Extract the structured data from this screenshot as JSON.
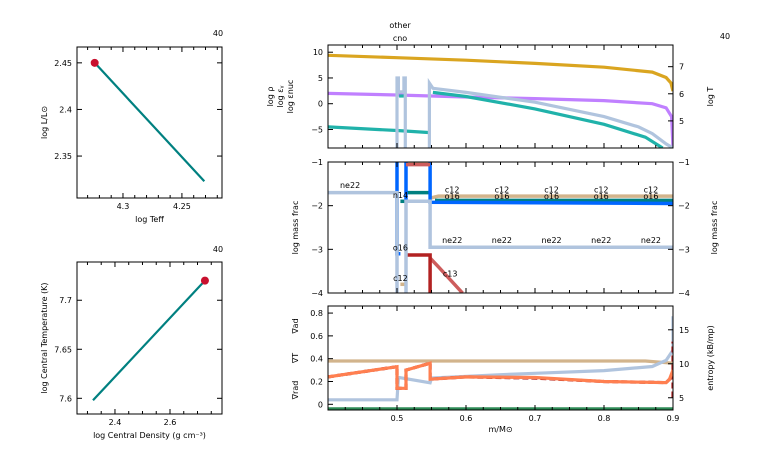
{
  "header": {
    "other_label": "other",
    "cno_label": "cno",
    "model_number_1": "40",
    "model_number_2": "40",
    "model_number_3": "40"
  },
  "chart_data": [
    {
      "id": "hr",
      "type": "line",
      "xlabel": "log Teff",
      "ylabel": "log L/L⊙",
      "xlim": [
        4.339,
        4.216
      ],
      "ylim": [
        2.305,
        2.467
      ],
      "xticks": [
        {
          "v": 4.3,
          "label": "4.3"
        },
        {
          "v": 4.25,
          "label": "4.25"
        }
      ],
      "yticks": [
        {
          "v": 2.45,
          "label": "2.45"
        },
        {
          "v": 2.4,
          "label": "2.4"
        },
        {
          "v": 2.35,
          "label": "2.35"
        }
      ],
      "series": [
        {
          "color": "#008080",
          "points": [
            [
              4.324,
              2.45
            ],
            [
              4.231,
              2.323
            ]
          ]
        }
      ],
      "marker": {
        "point": [
          4.324,
          2.45
        ],
        "color": "#C8102E"
      }
    },
    {
      "id": "center",
      "type": "line",
      "xlabel": "log Central Density (g cm⁻³)",
      "ylabel": "log Central Temperature (K)",
      "xlim": [
        2.262,
        2.789
      ],
      "ylim": [
        7.584,
        7.739
      ],
      "xticks": [
        {
          "v": 2.4,
          "label": "2.4"
        },
        {
          "v": 2.6,
          "label": "2.6"
        }
      ],
      "yticks": [
        {
          "v": 7.7,
          "label": "7.7"
        },
        {
          "v": 7.65,
          "label": "7.65"
        },
        {
          "v": 7.6,
          "label": "7.6"
        }
      ],
      "series": [
        {
          "color": "#008080",
          "points": [
            [
              2.32,
              7.598
            ],
            [
              2.727,
              7.72
            ]
          ]
        }
      ],
      "marker": {
        "point": [
          2.727,
          7.72
        ],
        "color": "#C8102E"
      }
    },
    {
      "id": "profile",
      "type": "line",
      "xlim": [
        0.4,
        0.9
      ],
      "ylim": [
        -8.6,
        11.4
      ],
      "y2lim": [
        4.0,
        7.8
      ],
      "yticks": [
        {
          "v": 10,
          "label": "10"
        },
        {
          "v": 5,
          "label": "5"
        },
        {
          "v": 0,
          "label": "0"
        },
        {
          "v": -5,
          "label": "-5"
        }
      ],
      "y2ticks": [
        {
          "v": 7,
          "label": "7"
        },
        {
          "v": 6,
          "label": "6"
        },
        {
          "v": 5,
          "label": "5"
        }
      ],
      "ylabels": [
        {
          "text": "log ρ",
          "color": "#C080FF"
        },
        {
          "text": "log εᵧ",
          "color": "#20B2AA"
        },
        {
          "text": "log εnuc",
          "color": "#B0C4DE"
        }
      ],
      "y2label": {
        "text": "log T",
        "color": "#DAA520"
      },
      "series": [
        {
          "name": "log T",
          "axis": "right",
          "color": "#DAA520",
          "segments": [
            [
              [
                0.4,
                7.42
              ],
              [
                0.5,
                7.33
              ],
              [
                0.6,
                7.24
              ],
              [
                0.7,
                7.12
              ],
              [
                0.8,
                6.98
              ],
              [
                0.87,
                6.8
              ],
              [
                0.89,
                6.6
              ],
              [
                0.897,
                6.4
              ],
              [
                0.9,
                6.1
              ]
            ]
          ]
        },
        {
          "name": "log rho",
          "color": "#C080FF",
          "segments": [
            [
              [
                0.4,
                2
              ],
              [
                0.5,
                1.7
              ],
              [
                0.6,
                1.3
              ],
              [
                0.7,
                1.0
              ],
              [
                0.8,
                0.6
              ],
              [
                0.87,
                0
              ],
              [
                0.89,
                -0.8
              ],
              [
                0.898,
                -2.5
              ],
              [
                0.9,
                -8.6
              ]
            ]
          ]
        },
        {
          "name": "log eps_grav",
          "color": "#20B2AA",
          "segments": [
            [
              [
                0.4,
                -4.5
              ],
              [
                0.5,
                -5.2
              ],
              [
                0.548,
                -5.6
              ]
            ],
            [
              [
                0.503,
                1.5
              ],
              [
                0.51,
                1.5
              ]
            ],
            [
              [
                0.552,
                2.2
              ],
              [
                0.6,
                1.4
              ],
              [
                0.7,
                -1
              ],
              [
                0.8,
                -4
              ],
              [
                0.86,
                -6.5
              ],
              [
                0.885,
                -8.6
              ]
            ]
          ]
        },
        {
          "name": "log eps_nuc",
          "color": "#B0C4DE",
          "segments": [
            [
              [
                0.5,
                -8.6
              ],
              [
                0.5,
                5
              ],
              [
                0.502,
                5
              ],
              [
                0.502,
                2.3
              ],
              [
                0.51,
                2.3
              ],
              [
                0.51,
                5
              ],
              [
                0.512,
                5
              ],
              [
                0.512,
                -8.6
              ]
            ],
            [
              [
                0.547,
                -8.6
              ],
              [
                0.547,
                4
              ],
              [
                0.552,
                3
              ],
              [
                0.6,
                2.2
              ],
              [
                0.7,
                0.3
              ],
              [
                0.8,
                -2.5
              ],
              [
                0.85,
                -4.5
              ],
              [
                0.87,
                -5.8
              ],
              [
                0.89,
                -7.8
              ],
              [
                0.9,
                -8.6
              ]
            ]
          ]
        }
      ]
    },
    {
      "id": "abundance",
      "type": "line",
      "xlim": [
        0.4,
        0.9
      ],
      "ylim": [
        -4,
        -1
      ],
      "yticks": [
        {
          "v": -1,
          "label": "-1"
        },
        {
          "v": -2,
          "label": "-2"
        },
        {
          "v": -3,
          "label": "-3"
        },
        {
          "v": -4,
          "label": "-4"
        }
      ],
      "ylabel": "log mass frac",
      "y2label": "log mass frac",
      "series": [
        {
          "name": "c12",
          "color": "#D2B48C",
          "segments": [
            [
              [
                0.505,
                -3.8
              ],
              [
                0.513,
                -3.8
              ]
            ],
            [
              [
                0.513,
                -1
              ],
              [
                0.548,
                -1
              ]
            ],
            [
              [
                0.55,
                -1.82
              ],
              [
                0.56,
                -1.78
              ],
              [
                0.9,
                -1.78
              ]
            ]
          ]
        },
        {
          "name": "n14",
          "color": "#008080",
          "segments": [
            [
              [
                0.505,
                -1.9
              ],
              [
                0.513,
                -1.9
              ]
            ],
            [
              [
                0.513,
                -1.7
              ],
              [
                0.548,
                -1.7
              ]
            ],
            [
              [
                0.555,
                -1.88
              ],
              [
                0.9,
                -1.88
              ]
            ]
          ]
        },
        {
          "name": "o16",
          "color": "#0066FF",
          "segments": [
            [
              [
                0.5,
                -1
              ],
              [
                0.5,
                -3.1
              ],
              [
                0.505,
                -3.1
              ]
            ],
            [
              [
                0.513,
                -1
              ],
              [
                0.513,
                -1.9
              ]
            ],
            [
              [
                0.548,
                -1
              ],
              [
                0.548,
                -1.92
              ],
              [
                0.9,
                -1.95
              ]
            ]
          ]
        },
        {
          "name": "c13",
          "color": "#CD5C5C",
          "segments": [
            [
              [
                0.513,
                -1.06
              ],
              [
                0.548,
                -1.06
              ]
            ],
            [
              [
                0.548,
                -3.2
              ],
              [
                0.56,
                -3.4
              ],
              [
                0.595,
                -4
              ]
            ]
          ]
        },
        {
          "name": "n15",
          "color": "#B22222",
          "segments": [
            [
              [
                0.513,
                -3.13
              ],
              [
                0.548,
                -3.13
              ],
              [
                0.548,
                -4
              ]
            ]
          ]
        },
        {
          "name": "ne22",
          "color": "#B0C4DE",
          "segments": [
            [
              [
                0.4,
                -1.7
              ],
              [
                0.5,
                -1.7
              ],
              [
                0.5,
                -4
              ]
            ],
            [
              [
                0.513,
                -4
              ],
              [
                0.513,
                -1.9
              ],
              [
                0.548,
                -1.9
              ],
              [
                0.548,
                -2.95
              ],
              [
                0.9,
                -2.95
              ]
            ]
          ]
        }
      ],
      "labels": [
        {
          "text": "ne22",
          "x": 0.432,
          "y": -1.6,
          "color": "#B0C4DE"
        },
        {
          "text": "n14",
          "x": 0.505,
          "y": -1.83,
          "color": "#008080"
        },
        {
          "text": "o16",
          "x": 0.505,
          "y": -3.03,
          "color": "#0066FF"
        },
        {
          "text": "c12",
          "x": 0.505,
          "y": -3.72,
          "color": "#D2B48C"
        },
        {
          "text": "c13",
          "x": 0.577,
          "y": -3.62,
          "color": "#CD5C5C"
        },
        {
          "text": "c12",
          "x": 0.58,
          "y": -1.7,
          "color": "#D2B48C"
        },
        {
          "text": "c12",
          "x": 0.652,
          "y": -1.7,
          "color": "#D2B48C"
        },
        {
          "text": "c12",
          "x": 0.724,
          "y": -1.7,
          "color": "#D2B48C"
        },
        {
          "text": "c12",
          "x": 0.796,
          "y": -1.7,
          "color": "#D2B48C"
        },
        {
          "text": "c12",
          "x": 0.868,
          "y": -1.7,
          "color": "#D2B48C"
        },
        {
          "text": "o16",
          "x": 0.58,
          "y": -1.85,
          "color": "#0066FF"
        },
        {
          "text": "o16",
          "x": 0.652,
          "y": -1.85,
          "color": "#0066FF"
        },
        {
          "text": "o16",
          "x": 0.724,
          "y": -1.85,
          "color": "#0066FF"
        },
        {
          "text": "o16",
          "x": 0.796,
          "y": -1.85,
          "color": "#0066FF"
        },
        {
          "text": "o16",
          "x": 0.868,
          "y": -1.85,
          "color": "#0066FF"
        },
        {
          "text": "ne22",
          "x": 0.58,
          "y": -2.85,
          "color": "#B0C4DE"
        },
        {
          "text": "ne22",
          "x": 0.652,
          "y": -2.85,
          "color": "#B0C4DE"
        },
        {
          "text": "ne22",
          "x": 0.724,
          "y": -2.85,
          "color": "#B0C4DE"
        },
        {
          "text": "ne22",
          "x": 0.796,
          "y": -2.85,
          "color": "#B0C4DE"
        },
        {
          "text": "ne22",
          "x": 0.868,
          "y": -2.85,
          "color": "#B0C4DE"
        }
      ]
    },
    {
      "id": "gradients",
      "type": "line",
      "xlabel": "m/M⊙",
      "xlim": [
        0.4,
        0.9
      ],
      "ylim": [
        -0.05,
        0.862
      ],
      "y2lim": [
        3.2,
        18.5
      ],
      "xticks": [
        {
          "v": 0.5,
          "label": "0.5"
        },
        {
          "v": 0.6,
          "label": "0.6"
        },
        {
          "v": 0.7,
          "label": "0.7"
        },
        {
          "v": 0.8,
          "label": "0.8"
        },
        {
          "v": 0.9,
          "label": "0.9"
        }
      ],
      "yticks": [
        {
          "v": 0.8,
          "label": "0.8"
        },
        {
          "v": 0.6,
          "label": "0.6"
        },
        {
          "v": 0.4,
          "label": "0.4"
        },
        {
          "v": 0.2,
          "label": "0.2"
        },
        {
          "v": 0,
          "label": "0"
        }
      ],
      "y2ticks": [
        {
          "v": 15,
          "label": "15"
        },
        {
          "v": 10,
          "label": "10"
        },
        {
          "v": 5,
          "label": "5"
        }
      ],
      "ylabels": [
        {
          "text": "∇ad",
          "color": "#D2B48C"
        },
        {
          "text": "∇T",
          "color": "#B22222"
        },
        {
          "text": "∇rad",
          "color": "#FF7F50"
        }
      ],
      "y2label": {
        "text": "entropy (kB/mp)",
        "color": "#000000"
      },
      "series": [
        {
          "name": "grad_ad",
          "color": "#D2B48C",
          "segments": [
            [
              [
                0.4,
                0.38
              ],
              [
                0.86,
                0.38
              ],
              [
                0.88,
                0.37
              ],
              [
                0.9,
                0.36
              ]
            ]
          ]
        },
        {
          "name": "entropy",
          "axis": "right",
          "color": "#B0C4DE",
          "segments": [
            [
              [
                0.4,
                4.7
              ],
              [
                0.5,
                4.7
              ],
              [
                0.502,
                8.0
              ],
              [
                0.548,
                7.2
              ],
              [
                0.55,
                7.9
              ],
              [
                0.65,
                8.4
              ],
              [
                0.7,
                8.6
              ],
              [
                0.8,
                9.0
              ],
              [
                0.87,
                9.6
              ],
              [
                0.89,
                10.5
              ],
              [
                0.9,
                12
              ],
              [
                0.9,
                17
              ]
            ]
          ]
        },
        {
          "name": "grad_T",
          "color": "#B22222",
          "dashed": true,
          "segments": [
            [
              [
                0.4,
                0.24
              ],
              [
                0.5,
                0.33
              ],
              [
                0.5,
                0.14
              ],
              [
                0.513,
                0.14
              ],
              [
                0.513,
                0.3
              ],
              [
                0.548,
                0.36
              ],
              [
                0.548,
                0.22
              ],
              [
                0.6,
                0.24
              ],
              [
                0.7,
                0.23
              ],
              [
                0.8,
                0.2
              ],
              [
                0.89,
                0.19
              ],
              [
                0.9,
                0.25
              ]
            ],
            [
              [
                0.9,
                0.06
              ],
              [
                0.9,
                0.55
              ]
            ]
          ]
        },
        {
          "name": "grad_rad",
          "color": "#FF7F50",
          "segments": [
            [
              [
                0.4,
                0.24
              ],
              [
                0.5,
                0.33
              ],
              [
                0.5,
                0.14
              ],
              [
                0.513,
                0.14
              ],
              [
                0.513,
                0.3
              ],
              [
                0.548,
                0.36
              ],
              [
                0.548,
                0.22
              ],
              [
                0.6,
                0.24
              ],
              [
                0.7,
                0.235
              ],
              [
                0.8,
                0.2
              ],
              [
                0.89,
                0.19
              ],
              [
                0.895,
                0.22
              ],
              [
                0.9,
                0.3
              ]
            ]
          ]
        },
        {
          "name": "zero",
          "color": "#2E8B57",
          "segments": [
            [
              [
                0.4,
                -0.04
              ],
              [
                0.9,
                -0.04
              ]
            ]
          ]
        }
      ]
    }
  ]
}
